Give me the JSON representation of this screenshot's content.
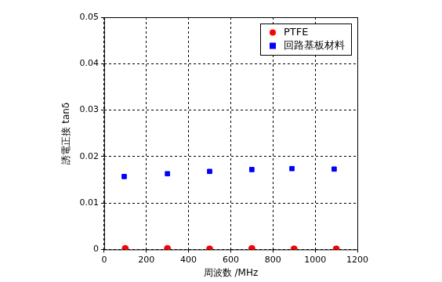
{
  "chart_data": {
    "type": "scatter",
    "x_label": "周波数 /MHz",
    "y_label": "誘電正接 tanδ",
    "xlim": [
      0,
      1200
    ],
    "xticks": [
      0,
      200,
      400,
      600,
      800,
      1000,
      1200
    ],
    "ylim": [
      0,
      0.05
    ],
    "yticks": [
      0,
      0.01,
      0.02,
      0.03,
      0.04,
      0.05
    ],
    "grid": true,
    "legend": "top-right",
    "series": [
      {
        "name": "PTFE",
        "color": "#ff0000",
        "marker": "circle",
        "x": [
          100,
          300,
          500,
          700,
          900,
          1100
        ],
        "values": [
          0.0002,
          0.0002,
          0.0001,
          0.0002,
          0.0001,
          0.0001
        ]
      },
      {
        "name": "回路基板材料",
        "color": "#0000ff",
        "marker": "square",
        "x": [
          95,
          300,
          500,
          700,
          890,
          1090
        ],
        "values": [
          0.0157,
          0.0163,
          0.0168,
          0.0172,
          0.0174,
          0.0173
        ]
      }
    ]
  }
}
